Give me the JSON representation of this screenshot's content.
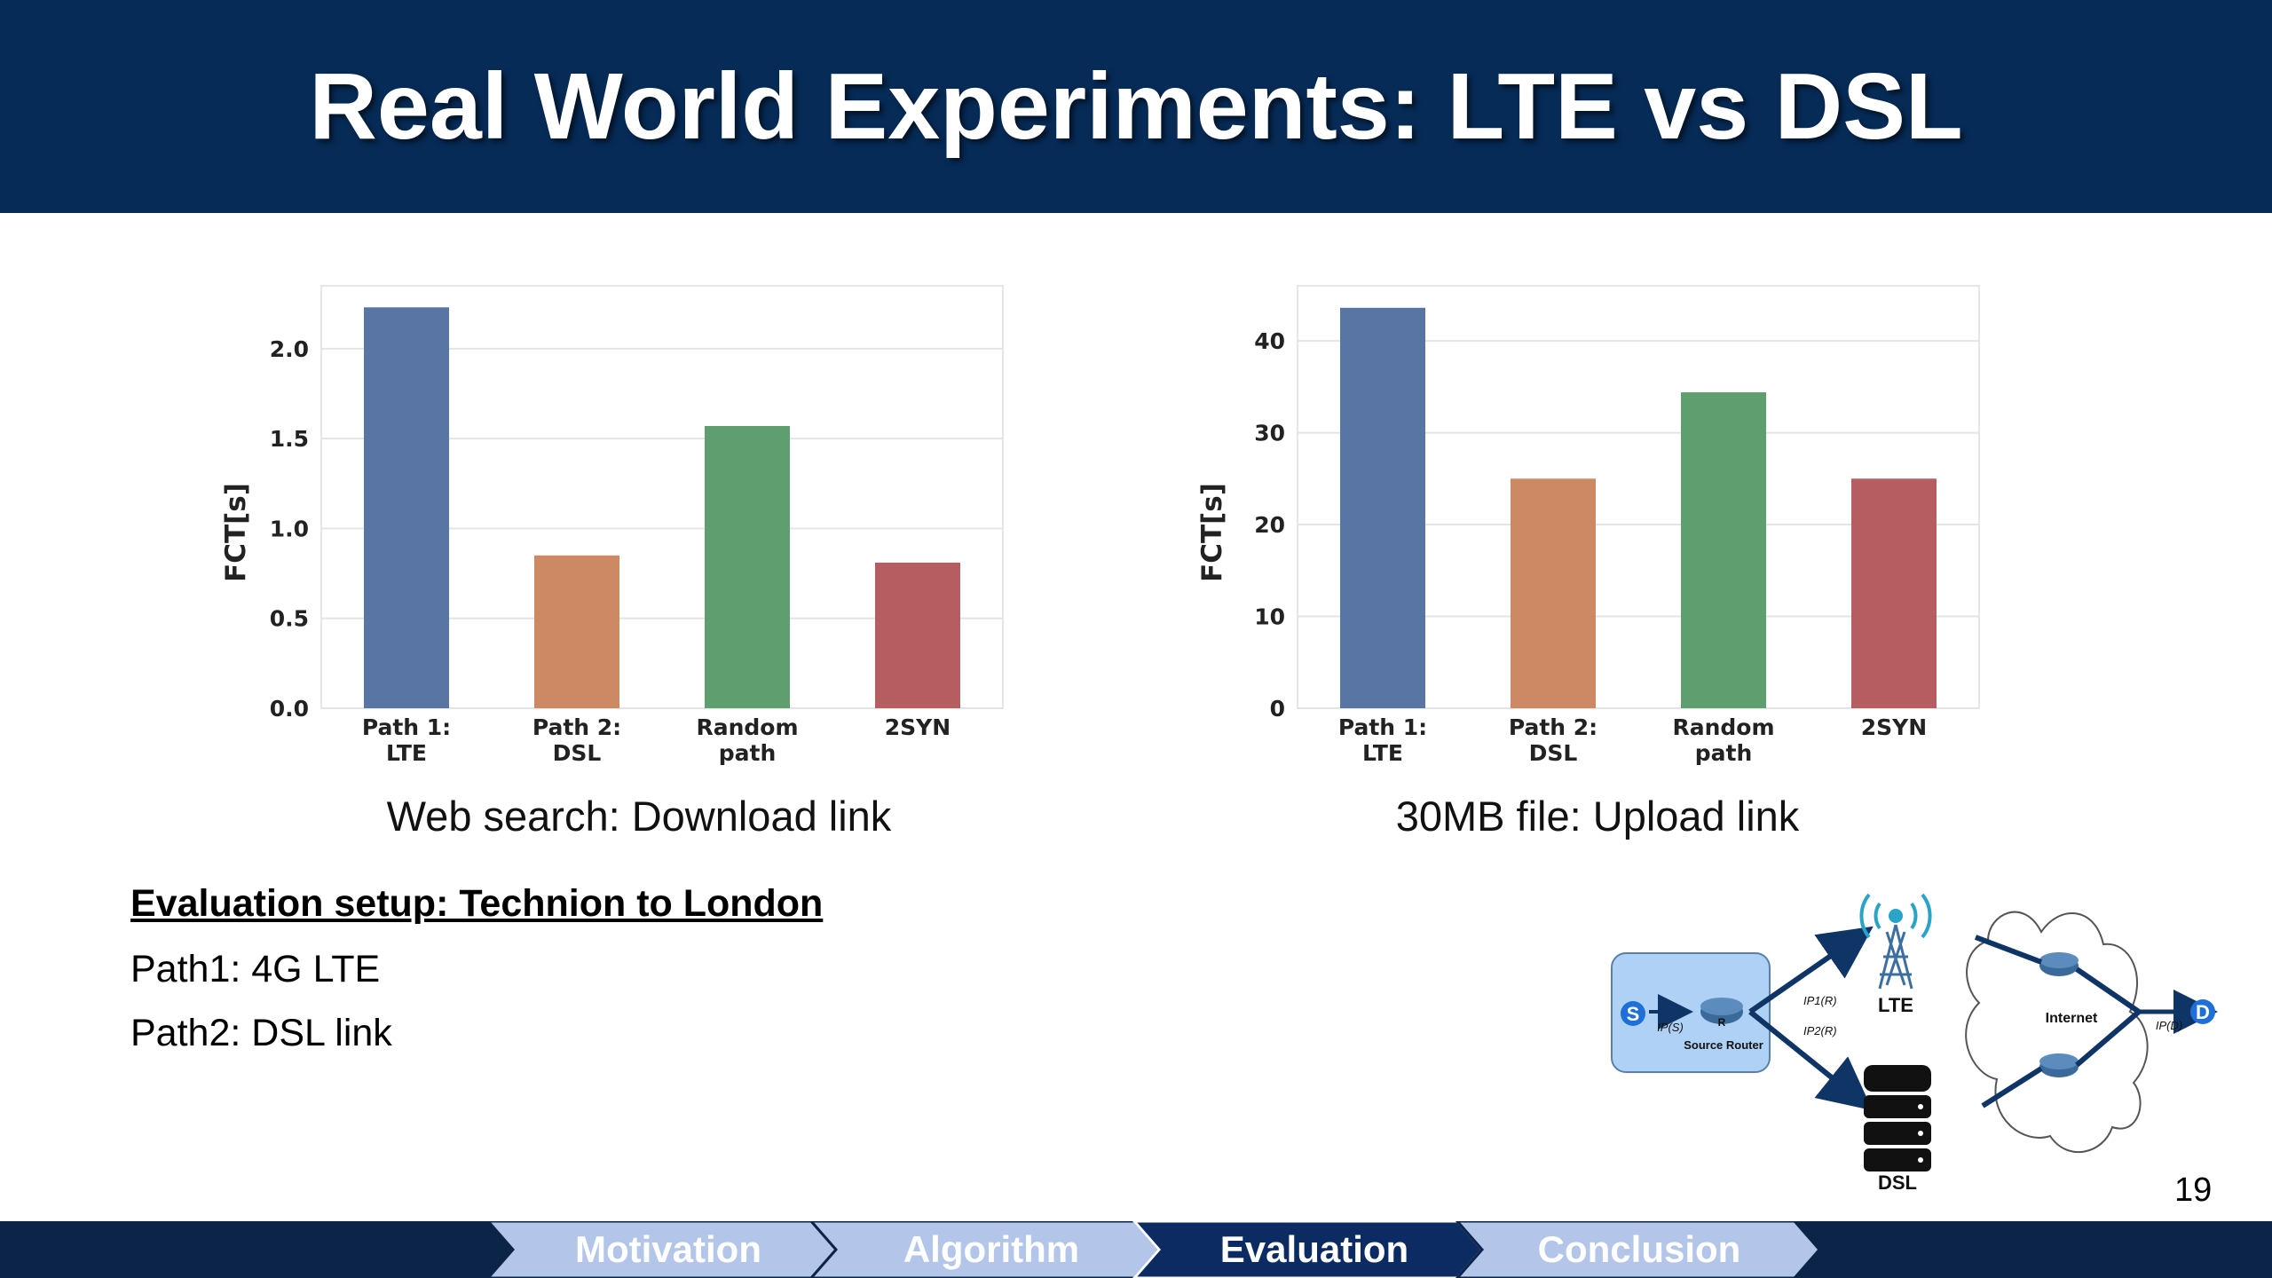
{
  "slide": {
    "title": "Real World Experiments: LTE vs DSL",
    "page_number": "19"
  },
  "chart_data": [
    {
      "type": "bar",
      "caption": "Web search: Download link",
      "ylabel": "FCT[s]",
      "categories": [
        [
          "Path 1:",
          "LTE"
        ],
        [
          "Path 2:",
          "DSL"
        ],
        [
          "Random",
          "path"
        ],
        [
          "2SYN"
        ]
      ],
      "values": [
        2.23,
        0.85,
        1.57,
        0.81
      ],
      "colors": [
        "#5875a4",
        "#cc8963",
        "#5f9e6e",
        "#b55d60"
      ],
      "ylim": [
        0,
        2.35
      ],
      "yticks": [
        0.0,
        0.5,
        1.0,
        1.5,
        2.0
      ],
      "ytick_labels": [
        "0.0",
        "0.5",
        "1.0",
        "1.5",
        "2.0"
      ],
      "grid": true
    },
    {
      "type": "bar",
      "caption": "30MB file: Upload link",
      "ylabel": "FCT[s]",
      "categories": [
        [
          "Path 1:",
          "LTE"
        ],
        [
          "Path 2:",
          "DSL"
        ],
        [
          "Random",
          "path"
        ],
        [
          "2SYN"
        ]
      ],
      "values": [
        43.6,
        25.0,
        34.4,
        25.0
      ],
      "colors": [
        "#5875a4",
        "#cc8963",
        "#5f9e6e",
        "#b55d60"
      ],
      "ylim": [
        0,
        46
      ],
      "yticks": [
        0,
        10,
        20,
        30,
        40
      ],
      "ytick_labels": [
        "0",
        "10",
        "20",
        "30",
        "40"
      ],
      "grid": true
    }
  ],
  "setup": {
    "heading": "Evaluation setup: Technion to London",
    "lines": [
      "Path1: 4G LTE",
      "Path2: DSL link"
    ]
  },
  "diagram": {
    "source_node": "S",
    "dest_node": "D",
    "router_label": "Source Router",
    "router_letter": "R",
    "source_ip": "IP(S)",
    "ip_lte": "IP1(R)",
    "ip_dsl": "IP2(R)",
    "dest_ip": "IP(D)",
    "lte_label": "LTE",
    "dsl_label": "DSL",
    "internet_label": "Internet",
    "box_color": "#aed1f5",
    "arrow_color": "#0f3566"
  },
  "nav": {
    "items": [
      {
        "label": "Motivation",
        "active": false
      },
      {
        "label": "Algorithm",
        "active": false
      },
      {
        "label": "Evaluation",
        "active": true
      },
      {
        "label": "Conclusion",
        "active": false
      }
    ],
    "inactive_color": "#b3c6ea",
    "active_color": "#0d2b63"
  }
}
